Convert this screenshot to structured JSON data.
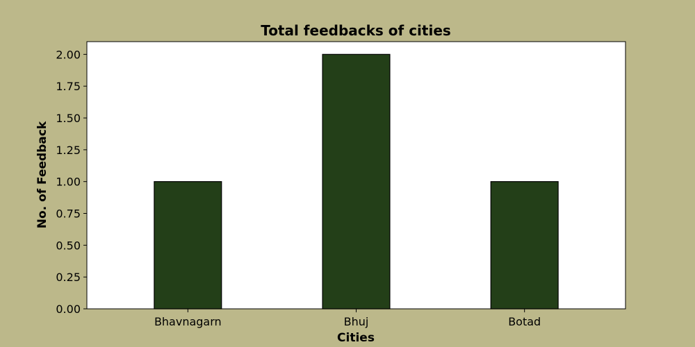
{
  "colors": {
    "figure_background": "#bcb88a",
    "plot_background": "#ffffff",
    "bar_fill": "#233f18",
    "bar_edge": "#000000"
  },
  "chart_data": {
    "type": "bar",
    "title": "Total feedbacks of cities",
    "xlabel": "Cities",
    "ylabel": "No. of Feedback",
    "categories": [
      "Bhavnagarn",
      "Bhuj",
      "Botad"
    ],
    "values": [
      1,
      2,
      1
    ],
    "ylim": [
      0,
      2.1
    ],
    "yticks": [
      "0.00",
      "0.25",
      "0.50",
      "0.75",
      "1.00",
      "1.25",
      "1.50",
      "1.75",
      "2.00"
    ],
    "grid": false,
    "legend": "none"
  }
}
